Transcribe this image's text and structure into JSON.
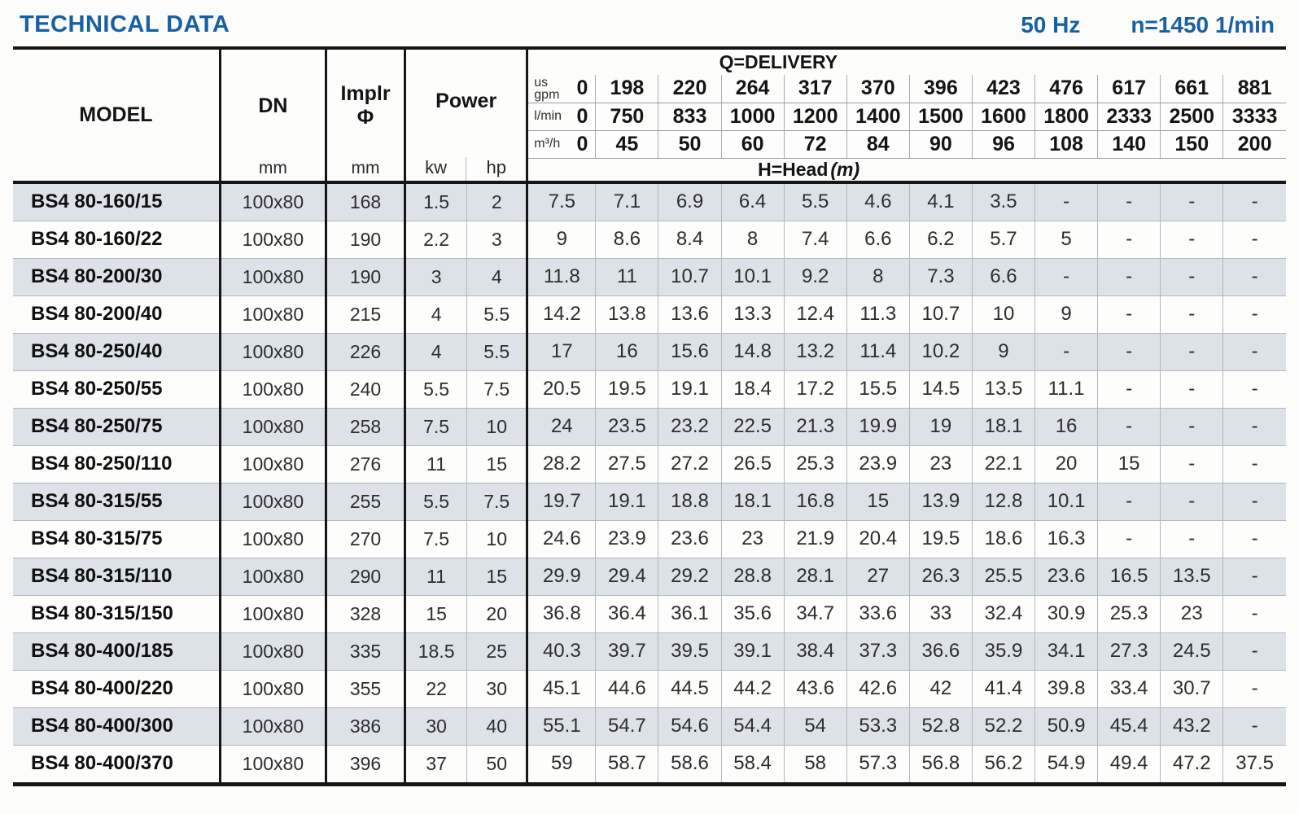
{
  "header": {
    "title": "TECHNICAL DATA",
    "frequency": "50 Hz",
    "speed": "n=1450 1/min"
  },
  "table": {
    "columns": {
      "model": "MODEL",
      "dn": {
        "label": "DN",
        "unit": "mm"
      },
      "implr": {
        "line1": "Implr",
        "line2": "Φ",
        "unit": "mm"
      },
      "power": {
        "label": "Power",
        "kw": "kw",
        "hp": "hp"
      }
    },
    "delivery": {
      "title": "Q=DELIVERY",
      "head_label": "H=Head",
      "head_unit": "(m)",
      "unit_rows": [
        {
          "label_lines": [
            "us",
            "gpm"
          ],
          "zero": "0",
          "values": [
            "198",
            "220",
            "264",
            "317",
            "370",
            "396",
            "423",
            "476",
            "617",
            "661",
            "881"
          ]
        },
        {
          "label_lines": [
            "l/min"
          ],
          "zero": "0",
          "values": [
            "750",
            "833",
            "1000",
            "1200",
            "1400",
            "1500",
            "1600",
            "1800",
            "2333",
            "2500",
            "3333"
          ]
        },
        {
          "label_lines": [
            "m³/h"
          ],
          "zero": "0",
          "values": [
            "45",
            "50",
            "60",
            "72",
            "84",
            "90",
            "96",
            "108",
            "140",
            "150",
            "200"
          ]
        }
      ]
    },
    "rows": [
      {
        "model": "BS4 80-160/15",
        "dn": "100x80",
        "implr": "168",
        "kw": "1.5",
        "hp": "2",
        "head": [
          "7.5",
          "7.1",
          "6.9",
          "6.4",
          "5.5",
          "4.6",
          "4.1",
          "3.5",
          "-",
          "-",
          "-",
          "-"
        ]
      },
      {
        "model": "BS4 80-160/22",
        "dn": "100x80",
        "implr": "190",
        "kw": "2.2",
        "hp": "3",
        "head": [
          "9",
          "8.6",
          "8.4",
          "8",
          "7.4",
          "6.6",
          "6.2",
          "5.7",
          "5",
          "-",
          "-",
          "-"
        ]
      },
      {
        "model": "BS4 80-200/30",
        "dn": "100x80",
        "implr": "190",
        "kw": "3",
        "hp": "4",
        "head": [
          "11.8",
          "11",
          "10.7",
          "10.1",
          "9.2",
          "8",
          "7.3",
          "6.6",
          "-",
          "-",
          "-",
          "-"
        ]
      },
      {
        "model": "BS4 80-200/40",
        "dn": "100x80",
        "implr": "215",
        "kw": "4",
        "hp": "5.5",
        "head": [
          "14.2",
          "13.8",
          "13.6",
          "13.3",
          "12.4",
          "11.3",
          "10.7",
          "10",
          "9",
          "-",
          "-",
          "-"
        ]
      },
      {
        "model": "BS4 80-250/40",
        "dn": "100x80",
        "implr": "226",
        "kw": "4",
        "hp": "5.5",
        "head": [
          "17",
          "16",
          "15.6",
          "14.8",
          "13.2",
          "11.4",
          "10.2",
          "9",
          "-",
          "-",
          "-",
          "-"
        ]
      },
      {
        "model": "BS4 80-250/55",
        "dn": "100x80",
        "implr": "240",
        "kw": "5.5",
        "hp": "7.5",
        "head": [
          "20.5",
          "19.5",
          "19.1",
          "18.4",
          "17.2",
          "15.5",
          "14.5",
          "13.5",
          "11.1",
          "-",
          "-",
          "-"
        ]
      },
      {
        "model": "BS4 80-250/75",
        "dn": "100x80",
        "implr": "258",
        "kw": "7.5",
        "hp": "10",
        "head": [
          "24",
          "23.5",
          "23.2",
          "22.5",
          "21.3",
          "19.9",
          "19",
          "18.1",
          "16",
          "-",
          "-",
          "-"
        ]
      },
      {
        "model": "BS4 80-250/110",
        "dn": "100x80",
        "implr": "276",
        "kw": "11",
        "hp": "15",
        "head": [
          "28.2",
          "27.5",
          "27.2",
          "26.5",
          "25.3",
          "23.9",
          "23",
          "22.1",
          "20",
          "15",
          "-",
          "-"
        ]
      },
      {
        "model": "BS4 80-315/55",
        "dn": "100x80",
        "implr": "255",
        "kw": "5.5",
        "hp": "7.5",
        "head": [
          "19.7",
          "19.1",
          "18.8",
          "18.1",
          "16.8",
          "15",
          "13.9",
          "12.8",
          "10.1",
          "-",
          "-",
          "-"
        ]
      },
      {
        "model": "BS4 80-315/75",
        "dn": "100x80",
        "implr": "270",
        "kw": "7.5",
        "hp": "10",
        "head": [
          "24.6",
          "23.9",
          "23.6",
          "23",
          "21.9",
          "20.4",
          "19.5",
          "18.6",
          "16.3",
          "-",
          "-",
          "-"
        ]
      },
      {
        "model": "BS4 80-315/110",
        "dn": "100x80",
        "implr": "290",
        "kw": "11",
        "hp": "15",
        "head": [
          "29.9",
          "29.4",
          "29.2",
          "28.8",
          "28.1",
          "27",
          "26.3",
          "25.5",
          "23.6",
          "16.5",
          "13.5",
          "-"
        ]
      },
      {
        "model": "BS4 80-315/150",
        "dn": "100x80",
        "implr": "328",
        "kw": "15",
        "hp": "20",
        "head": [
          "36.8",
          "36.4",
          "36.1",
          "35.6",
          "34.7",
          "33.6",
          "33",
          "32.4",
          "30.9",
          "25.3",
          "23",
          "-"
        ]
      },
      {
        "model": "BS4 80-400/185",
        "dn": "100x80",
        "implr": "335",
        "kw": "18.5",
        "hp": "25",
        "head": [
          "40.3",
          "39.7",
          "39.5",
          "39.1",
          "38.4",
          "37.3",
          "36.6",
          "35.9",
          "34.1",
          "27.3",
          "24.5",
          "-"
        ]
      },
      {
        "model": "BS4 80-400/220",
        "dn": "100x80",
        "implr": "355",
        "kw": "22",
        "hp": "30",
        "head": [
          "45.1",
          "44.6",
          "44.5",
          "44.2",
          "43.6",
          "42.6",
          "42",
          "41.4",
          "39.8",
          "33.4",
          "30.7",
          "-"
        ]
      },
      {
        "model": "BS4 80-400/300",
        "dn": "100x80",
        "implr": "386",
        "kw": "30",
        "hp": "40",
        "head": [
          "55.1",
          "54.7",
          "54.6",
          "54.4",
          "54",
          "53.3",
          "52.8",
          "52.2",
          "50.9",
          "45.4",
          "43.2",
          "-"
        ]
      },
      {
        "model": "BS4 80-400/370",
        "dn": "100x80",
        "implr": "396",
        "kw": "37",
        "hp": "50",
        "head": [
          "59",
          "58.7",
          "58.6",
          "58.4",
          "58",
          "57.3",
          "56.8",
          "56.2",
          "54.9",
          "49.4",
          "47.2",
          "37.5"
        ]
      }
    ]
  },
  "colors": {
    "accent_blue": "#1761a3",
    "row_shade": "#dce2e8",
    "border_black": "#161616"
  }
}
